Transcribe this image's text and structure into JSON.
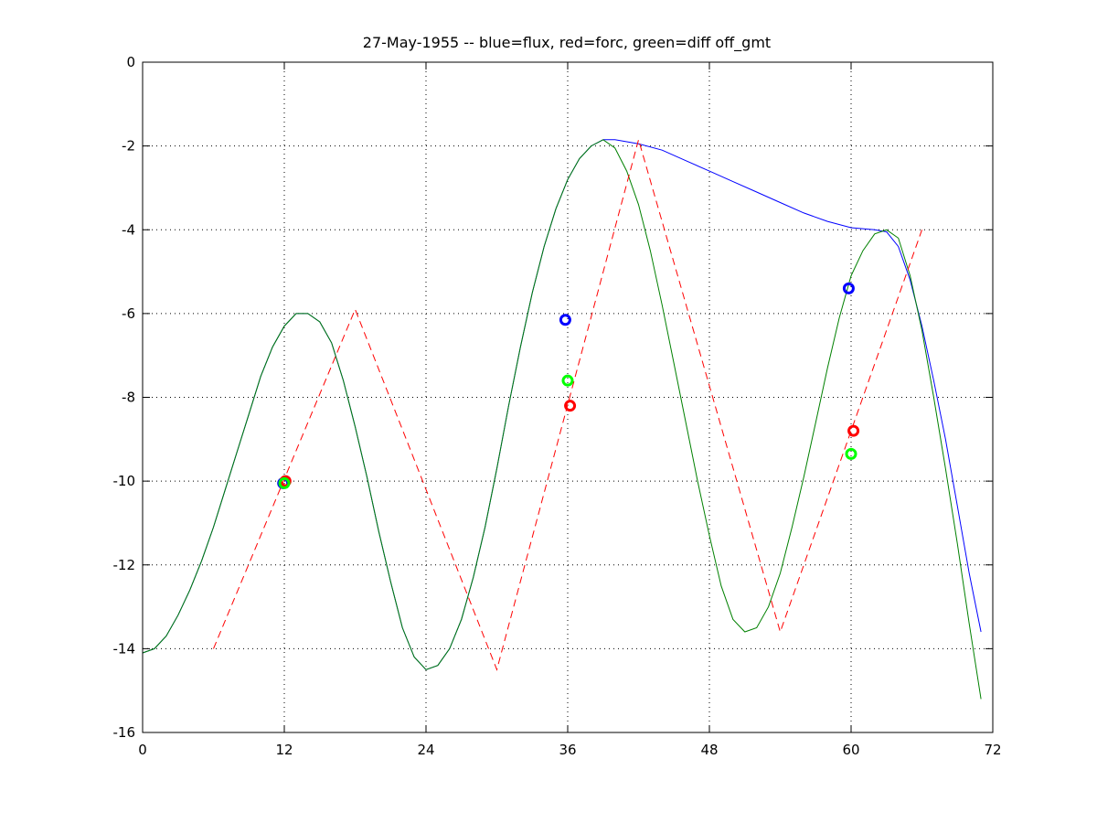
{
  "chart_data": {
    "type": "line",
    "title": "27-May-1955 -- blue=flux, red=forc, green=diff off_gmt",
    "xlabel": "",
    "ylabel": "",
    "xlim": [
      0,
      72
    ],
    "ylim": [
      -16,
      0
    ],
    "x_ticks": [
      0,
      12,
      24,
      36,
      48,
      60,
      72
    ],
    "y_ticks": [
      0,
      -2,
      -4,
      -6,
      -8,
      -10,
      -12,
      -14,
      -16
    ],
    "grid": true,
    "grid_style": "dotted",
    "legend": "none",
    "series": [
      {
        "color": "#0000ff",
        "style": "solid",
        "x": [
          0,
          1,
          2,
          3,
          4,
          5,
          6,
          7,
          8,
          9,
          10,
          11,
          12,
          13,
          14,
          15,
          16,
          17,
          18,
          19,
          20,
          21,
          22,
          23,
          24,
          25,
          26,
          27,
          28,
          29,
          30,
          31,
          32,
          33,
          34,
          35,
          36,
          37,
          38,
          39,
          40,
          42,
          44,
          46,
          48,
          50,
          52,
          54,
          56,
          58,
          60,
          62,
          63,
          64,
          65,
          66,
          67,
          68,
          69,
          70,
          71
        ],
        "y": [
          -14.1,
          -14.0,
          -13.7,
          -13.2,
          -12.6,
          -11.9,
          -11.1,
          -10.2,
          -9.3,
          -8.4,
          -7.5,
          -6.8,
          -6.3,
          -6.0,
          -6.0,
          -6.2,
          -6.7,
          -7.6,
          -8.7,
          -9.9,
          -11.2,
          -12.4,
          -13.5,
          -14.2,
          -14.5,
          -14.4,
          -14.0,
          -13.3,
          -12.3,
          -11.1,
          -9.7,
          -8.2,
          -6.8,
          -5.5,
          -4.4,
          -3.5,
          -2.8,
          -2.3,
          -2.0,
          -1.85,
          -1.85,
          -1.95,
          -2.1,
          -2.35,
          -2.6,
          -2.85,
          -3.1,
          -3.35,
          -3.6,
          -3.8,
          -3.95,
          -4.0,
          -4.05,
          -4.4,
          -5.2,
          -6.3,
          -7.6,
          -9.0,
          -10.6,
          -12.2,
          -13.6
        ]
      },
      {
        "color": "#008000",
        "style": "solid",
        "x": [
          0,
          1,
          2,
          3,
          4,
          5,
          6,
          7,
          8,
          9,
          10,
          11,
          12,
          13,
          14,
          15,
          16,
          17,
          18,
          19,
          20,
          21,
          22,
          23,
          24,
          25,
          26,
          27,
          28,
          29,
          30,
          31,
          32,
          33,
          34,
          35,
          36,
          37,
          38,
          39,
          40,
          41,
          42,
          43,
          44,
          45,
          46,
          47,
          48,
          49,
          50,
          51,
          52,
          53,
          54,
          55,
          56,
          57,
          58,
          59,
          60,
          61,
          62,
          63,
          64,
          65,
          66,
          67,
          68,
          69,
          70,
          71
        ],
        "y": [
          -14.1,
          -14.0,
          -13.7,
          -13.2,
          -12.6,
          -11.9,
          -11.1,
          -10.2,
          -9.3,
          -8.4,
          -7.5,
          -6.8,
          -6.3,
          -6.0,
          -6.0,
          -6.2,
          -6.7,
          -7.6,
          -8.7,
          -9.9,
          -11.2,
          -12.4,
          -13.5,
          -14.2,
          -14.5,
          -14.4,
          -14.0,
          -13.3,
          -12.3,
          -11.1,
          -9.7,
          -8.2,
          -6.8,
          -5.5,
          -4.4,
          -3.5,
          -2.8,
          -2.3,
          -2.0,
          -1.85,
          -2.05,
          -2.6,
          -3.4,
          -4.5,
          -5.8,
          -7.2,
          -8.6,
          -10.0,
          -11.3,
          -12.5,
          -13.3,
          -13.6,
          -13.5,
          -13.0,
          -12.2,
          -11.1,
          -9.9,
          -8.6,
          -7.3,
          -6.1,
          -5.1,
          -4.5,
          -4.1,
          -4.0,
          -4.2,
          -5.1,
          -6.4,
          -8.0,
          -9.7,
          -11.5,
          -13.4,
          -15.2
        ]
      },
      {
        "color": "#ff0000",
        "style": "dashed",
        "x": [
          6,
          18,
          30,
          42,
          54,
          66
        ],
        "y": [
          -14.0,
          -5.9,
          -14.5,
          -1.85,
          -13.6,
          -4.0
        ]
      }
    ],
    "markers": [
      {
        "color": "#0000ff",
        "x": 11.9,
        "y": -10.05
      },
      {
        "color": "#ff0000",
        "x": 12.1,
        "y": -10.0
      },
      {
        "color": "#00ff00",
        "x": 12.0,
        "y": -10.05
      },
      {
        "color": "#0000ff",
        "x": 35.8,
        "y": -6.15
      },
      {
        "color": "#00ff00",
        "x": 36.0,
        "y": -7.6
      },
      {
        "color": "#ff0000",
        "x": 36.2,
        "y": -8.2
      },
      {
        "color": "#0000ff",
        "x": 59.8,
        "y": -5.4
      },
      {
        "color": "#ff0000",
        "x": 60.2,
        "y": -8.8
      },
      {
        "color": "#00ff00",
        "x": 60.0,
        "y": -9.35
      }
    ]
  }
}
